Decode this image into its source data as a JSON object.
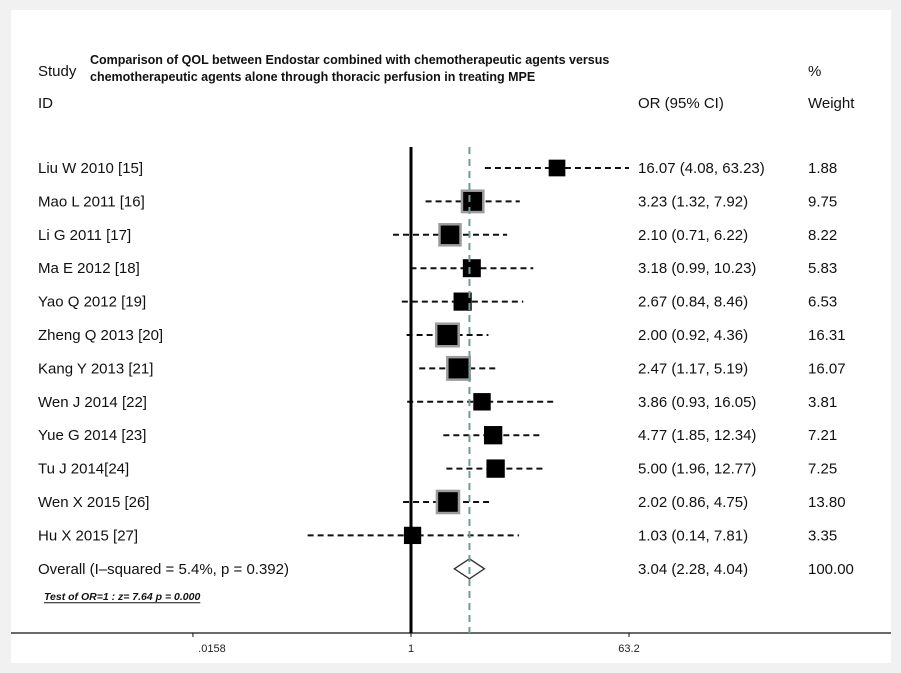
{
  "chart_data": {
    "type": "forest",
    "title_lines": [
      "Comparison of QOL between Endostar combined with chemotherapeutic agents versus",
      "chemotherapeutic agents alone through thoracic perfusion in treating MPE"
    ],
    "headers": {
      "study": "Study",
      "id": "ID",
      "or": "OR (95% CI)",
      "pct": "%",
      "weight": "Weight"
    },
    "x_scale": "log",
    "xlim": [
      0.0158,
      63.2
    ],
    "x_ticks": [
      {
        "value": 0.0158,
        "label": ".0158"
      },
      {
        "value": 1,
        "label": "1"
      },
      {
        "value": 63.2,
        "label": "63.2"
      }
    ],
    "null_line": 1,
    "studies": [
      {
        "id": "Liu W 2010 [15]",
        "or": 16.07,
        "lo": 4.08,
        "hi": 63.23,
        "ci_text": "16.07 (4.08, 63.23)",
        "weight": "1.88"
      },
      {
        "id": "Mao L 2011 [16]",
        "or": 3.23,
        "lo": 1.32,
        "hi": 7.92,
        "ci_text": "3.23 (1.32, 7.92)",
        "weight": "9.75"
      },
      {
        "id": "Li G 2011 [17]",
        "or": 2.1,
        "lo": 0.71,
        "hi": 6.22,
        "ci_text": "2.10 (0.71, 6.22)",
        "weight": "8.22"
      },
      {
        "id": "Ma E 2012 [18]",
        "or": 3.18,
        "lo": 0.99,
        "hi": 10.23,
        "ci_text": "3.18 (0.99, 10.23)",
        "weight": "5.83"
      },
      {
        "id": "Yao Q 2012 [19]",
        "or": 2.67,
        "lo": 0.84,
        "hi": 8.46,
        "ci_text": "2.67 (0.84, 8.46)",
        "weight": "6.53"
      },
      {
        "id": "Zheng Q 2013 [20]",
        "or": 2.0,
        "lo": 0.92,
        "hi": 4.36,
        "ci_text": "2.00 (0.92, 4.36)",
        "weight": "16.31"
      },
      {
        "id": "Kang Y 2013 [21]",
        "or": 2.47,
        "lo": 1.17,
        "hi": 5.19,
        "ci_text": "2.47 (1.17, 5.19)",
        "weight": "16.07"
      },
      {
        "id": "Wen J 2014 [22]",
        "or": 3.86,
        "lo": 0.93,
        "hi": 16.05,
        "ci_text": "3.86 (0.93, 16.05)",
        "weight": "3.81"
      },
      {
        "id": "Yue G 2014 [23]",
        "or": 4.77,
        "lo": 1.85,
        "hi": 12.34,
        "ci_text": "4.77 (1.85, 12.34)",
        "weight": "7.21"
      },
      {
        "id": "Tu J 2014[24]",
        "or": 5.0,
        "lo": 1.96,
        "hi": 12.77,
        "ci_text": "5.00 (1.96, 12.77)",
        "weight": "7.25"
      },
      {
        "id": "Wen X 2015 [26]",
        "or": 2.02,
        "lo": 0.86,
        "hi": 4.75,
        "ci_text": "2.02 (0.86, 4.75)",
        "weight": "13.80"
      },
      {
        "id": "Hu X 2015 [27]",
        "or": 1.03,
        "lo": 0.14,
        "hi": 7.81,
        "ci_text": "1.03 (0.14, 7.81)",
        "weight": "3.35"
      }
    ],
    "overall": {
      "label": "Overall  (I–squared = 5.4%, p = 0.392)",
      "or": 3.04,
      "lo": 2.28,
      "hi": 4.04,
      "ci_text": "3.04 (2.28, 4.04)",
      "weight": "100.00"
    },
    "test_text": "Test of OR=1 : z=   7.64 p = 0.000"
  }
}
